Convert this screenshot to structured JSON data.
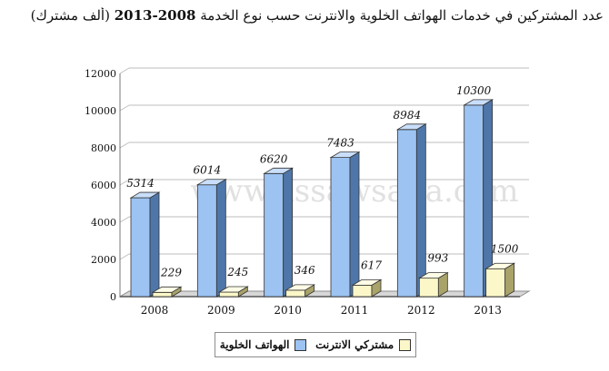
{
  "title": {
    "main": "عدد المشتركين في خدمات الهواتف الخلوية والانترنت حسب نوع الخدمة",
    "years": "2008-2013",
    "unit": "(ألف مشترك)"
  },
  "watermark": "www.assawsana.com",
  "colors": {
    "mobile_front": "#9cc3f2",
    "mobile_side": "#4f76a8",
    "mobile_top": "#c9defa",
    "internet_front": "#fbf7c8",
    "internet_side": "#a9a36a",
    "internet_top": "#fffde6",
    "floor": "#8e8e8e",
    "gridline": "#bdbdbd"
  },
  "chart_data": {
    "type": "bar",
    "categories": [
      "2008",
      "2009",
      "2010",
      "2011",
      "2012",
      "2013"
    ],
    "series": [
      {
        "name": "الهواتف الخلوية",
        "values": [
          5314,
          6014,
          6620,
          7483,
          8984,
          10300
        ]
      },
      {
        "name": "مشتركي الانترنت",
        "values": [
          229,
          245,
          346,
          617,
          993,
          1500
        ]
      }
    ],
    "xlabel": "",
    "ylabel": "",
    "ylim": [
      0,
      12000
    ],
    "yticks": [
      0,
      2000,
      4000,
      6000,
      8000,
      10000,
      12000
    ],
    "grid": true,
    "legend": "bottom"
  }
}
